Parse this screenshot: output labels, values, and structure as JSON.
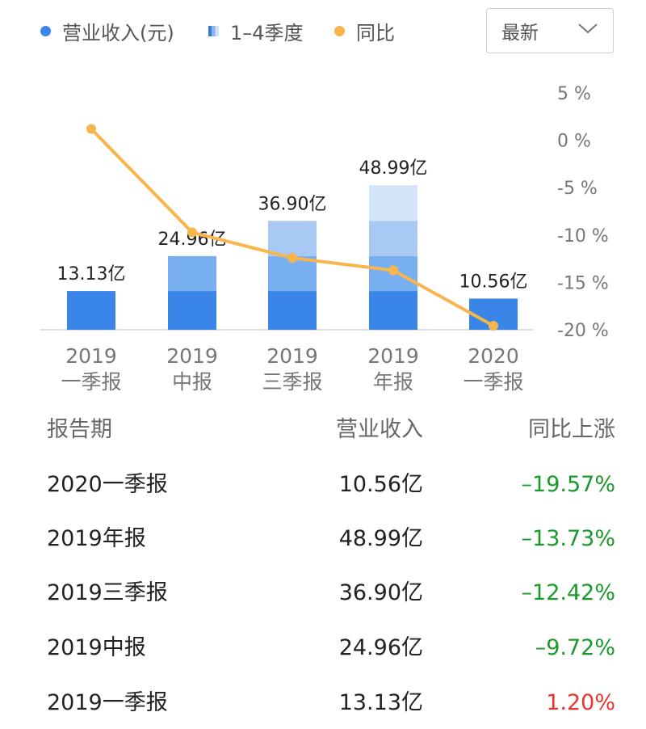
{
  "legend": {
    "revenue_label": "营业收入(元)",
    "quarters_label": "1–4季度",
    "yoy_label": "同比"
  },
  "colors": {
    "bar_q1": "#3a86e8",
    "bar_q2": "#78aff0",
    "bar_q3": "#a7c9f4",
    "bar_q4": "#d3e4fb",
    "line": "#f7b54b",
    "legend_blue_dot": "#3a86e8",
    "negative": "#1a9a2b",
    "positive": "#e8352d"
  },
  "select": {
    "value": "最新",
    "icon": "chevron-down-icon"
  },
  "chart_data": {
    "type": "bar",
    "categories": [
      [
        "2019",
        "一季报"
      ],
      [
        "2019",
        "中报"
      ],
      [
        "2019",
        "三季报"
      ],
      [
        "2019",
        "年报"
      ],
      [
        "2020",
        "一季报"
      ]
    ],
    "stacked_quarters": [
      [
        13.13
      ],
      [
        13.13,
        11.83
      ],
      [
        13.13,
        11.83,
        11.94
      ],
      [
        13.13,
        11.83,
        11.94,
        12.09
      ],
      [
        10.56
      ]
    ],
    "bar_labels": [
      "13.13亿",
      "24.96亿",
      "36.90亿",
      "48.99亿",
      "10.56亿"
    ],
    "y_left_lim": [
      0,
      60
    ],
    "line_series": {
      "values": [
        1.2,
        -9.72,
        -12.42,
        -13.73,
        -19.57
      ]
    },
    "y_right_ticks": [
      "5 %",
      "0 %",
      "-5 %",
      "-10 %",
      "-15 %",
      "-20 %"
    ],
    "y_right_tick_values": [
      5,
      0,
      -5,
      -10,
      -15,
      -20
    ],
    "y_right_lim": [
      -20,
      5
    ]
  },
  "table": {
    "headers": [
      "报告期",
      "营业收入",
      "同比上涨"
    ],
    "rows": [
      {
        "period": "2020一季报",
        "revenue": "10.56亿",
        "yoy": "–19.57%",
        "sign": "neg"
      },
      {
        "period": "2019年报",
        "revenue": "48.99亿",
        "yoy": "–13.73%",
        "sign": "neg"
      },
      {
        "period": "2019三季报",
        "revenue": "36.90亿",
        "yoy": "–12.42%",
        "sign": "neg"
      },
      {
        "period": "2019中报",
        "revenue": "24.96亿",
        "yoy": "–9.72%",
        "sign": "neg"
      },
      {
        "period": "2019一季报",
        "revenue": "13.13亿",
        "yoy": "1.20%",
        "sign": "pos"
      }
    ]
  }
}
